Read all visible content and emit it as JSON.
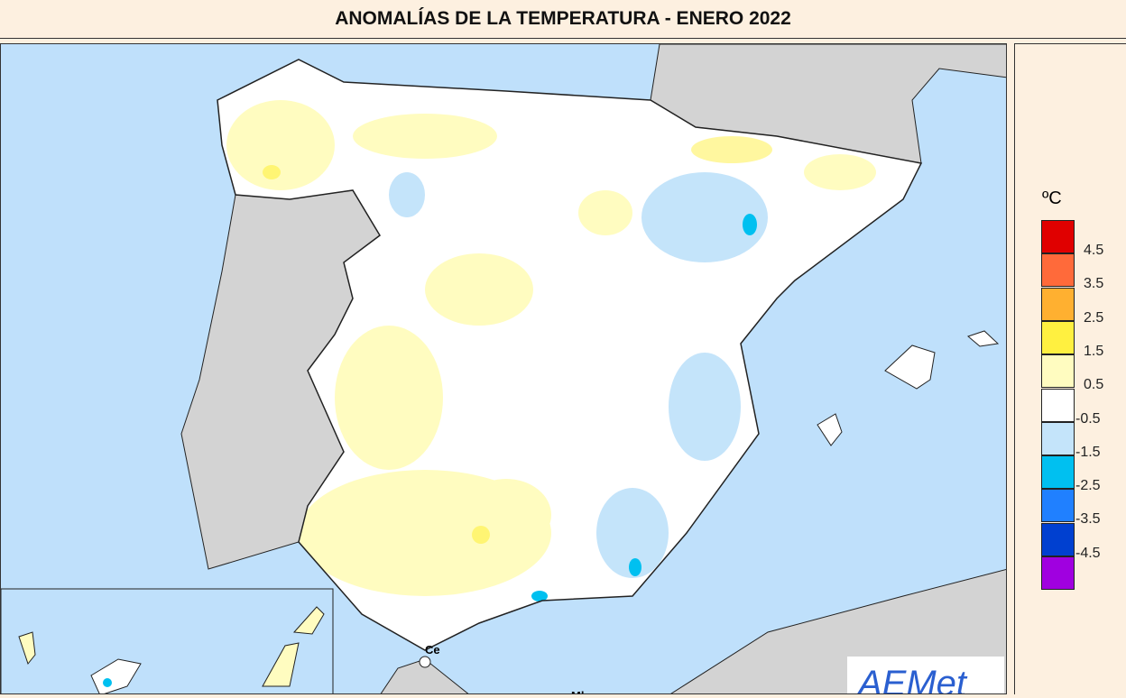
{
  "title": "ANOMALÍAS DE LA TEMPERATURA - ENERO 2022",
  "legend": {
    "unit": "ºC",
    "colors": [
      "#e00000",
      "#ff6a3a",
      "#ffb030",
      "#fff040",
      "#fffcc0",
      "#ffffff",
      "#c4e4fa",
      "#00c0f0",
      "#2080ff",
      "#0040d0",
      "#a000e0"
    ],
    "labels": [
      "4.5",
      "3.5",
      "2.5",
      "1.5",
      "0.5",
      "-0.5",
      "-1.5",
      "-2.5",
      "-3.5",
      "-4.5"
    ]
  },
  "map": {
    "labels": {
      "ceuta": "Ce",
      "melilla": "Ml"
    },
    "logo": "AEMet",
    "colors": {
      "sea": "#bfe0fb",
      "land_other": "#d3d3d3",
      "anomaly_positive": "#fffcc0",
      "anomaly_negative": "#c4e4fa",
      "anomaly_strong_positive": "#fff040",
      "anomaly_strong_negative": "#00c0f0"
    }
  }
}
